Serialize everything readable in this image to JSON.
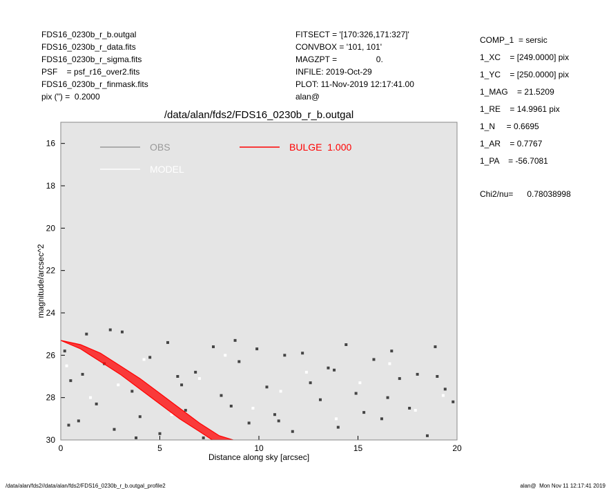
{
  "header": {
    "left": [
      "FDS16_0230b_r_b.outgal",
      "FDS16_0230b_r_data.fits",
      "FDS16_0230b_r_sigma.fits",
      "PSF    = psf_r16_over2.fits",
      "FDS16_0230b_r_finmask.fits",
      "pix (\") =  0.2000"
    ],
    "middle": [
      "FITSECT = '[170:326,171:327]'",
      "CONVBOX = '101, 101'",
      "MAGZPT =                 0.",
      "INFILE: 2019-Oct-29",
      "PLOT: 11-Nov-2019 12:17:41.00",
      "alan@"
    ],
    "right": [
      "COMP_1  = sersic",
      "1_XC    = [249.0000] pix",
      "1_YC    = [250.0000] pix",
      "1_MAG    = 21.5209",
      "1_RE    = 14.9961 pix",
      "1_N     = 0.6695",
      "1_AR    = 0.7767",
      "1_PA    = -56.7081"
    ],
    "chi2": "Chi2/nu=      0.78038998"
  },
  "footer": {
    "left": "/data/alan/fds2//data/alan/fds2/FDS16_0230b_r_b.outgal_profile2",
    "right": "alan@  Mon Nov 11 12:17:41 2019"
  },
  "chart_data": {
    "type": "scatter",
    "title": "/data/alan/fds2/FDS16_0230b_r_b.outgal",
    "xlabel": "Distance along sky [arcsec]",
    "ylabel": "magnitude/arcsec^2",
    "xlim": [
      0,
      20
    ],
    "xticks": [
      0,
      5,
      10,
      15,
      20
    ],
    "ylim": [
      30,
      15
    ],
    "yticks": [
      16,
      18,
      20,
      22,
      24,
      26,
      28,
      30
    ],
    "background": "#e5e5e5",
    "series": [
      {
        "name": "OBS",
        "color": "#444444",
        "legend_color": "#999999",
        "x": [
          0.2,
          0.5,
          0.9,
          1.3,
          1.8,
          2.2,
          2.7,
          3.1,
          3.6,
          4.0,
          4.5,
          5.0,
          5.4,
          5.9,
          6.3,
          6.8,
          7.2,
          7.7,
          8.1,
          8.6,
          9.0,
          9.5,
          9.9,
          10.4,
          10.8,
          11.3,
          11.7,
          12.2,
          12.6,
          13.1,
          13.5,
          14.0,
          14.4,
          14.9,
          15.3,
          15.8,
          16.2,
          16.7,
          17.1,
          17.6,
          18.0,
          18.5,
          18.9,
          19.4,
          19.8,
          0.4,
          1.1,
          2.5,
          3.8,
          6.1,
          8.8,
          11.0,
          13.8,
          16.5,
          19.0
        ],
        "values": [
          25.8,
          27.2,
          29.1,
          25.0,
          28.3,
          26.4,
          29.5,
          24.9,
          27.7,
          28.9,
          26.1,
          29.7,
          25.4,
          27.0,
          28.6,
          26.8,
          29.9,
          25.6,
          27.9,
          28.4,
          26.3,
          29.2,
          25.7,
          27.5,
          28.8,
          26.0,
          29.6,
          25.9,
          27.3,
          28.1,
          26.6,
          29.4,
          25.5,
          27.8,
          28.7,
          26.2,
          29.0,
          25.8,
          27.1,
          28.5,
          26.9,
          29.8,
          25.6,
          27.6,
          28.2,
          29.3,
          26.9,
          24.8,
          29.9,
          27.4,
          25.3,
          29.1,
          26.7,
          28.0,
          27.0
        ]
      },
      {
        "name": "MODEL",
        "color": "#ffffff",
        "legend_color": "#ffffff",
        "x": [
          0.3,
          1.5,
          2.9,
          4.2,
          5.6,
          7.0,
          8.3,
          9.7,
          11.1,
          12.4,
          13.9,
          15.1,
          16.6,
          17.9,
          19.3
        ],
        "values": [
          26.5,
          28.0,
          27.4,
          26.2,
          28.8,
          27.1,
          26.0,
          28.5,
          27.7,
          26.8,
          29.0,
          27.3,
          26.4,
          28.6,
          27.9
        ]
      },
      {
        "name": "BULGE  1.000",
        "color": "#ff0000",
        "legend_color": "#ff0000",
        "edges": [
          {
            "x": [
              0,
              1,
              2,
              3,
              4,
              5,
              6,
              7,
              8,
              8.7
            ],
            "values": [
              25.3,
              25.5,
              25.9,
              26.5,
              27.1,
              27.8,
              28.5,
              29.2,
              29.8,
              30
            ]
          },
          {
            "x": [
              0,
              1,
              2,
              3,
              4,
              5,
              6,
              7,
              7.65
            ],
            "values": [
              25.3,
              25.7,
              26.3,
              26.9,
              27.6,
              28.3,
              29.0,
              29.6,
              30
            ]
          }
        ]
      }
    ]
  }
}
